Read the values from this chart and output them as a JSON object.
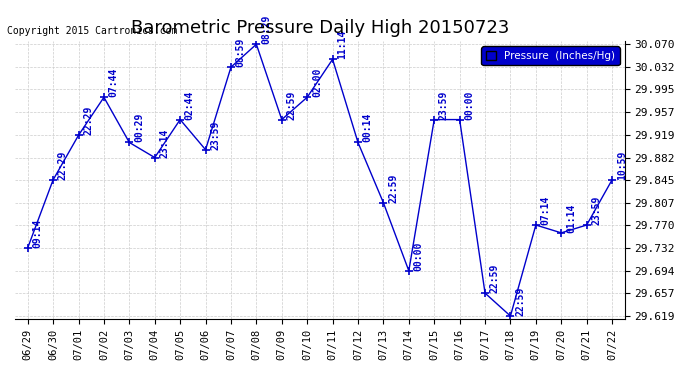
{
  "title": "Barometric Pressure Daily High 20150723",
  "copyright": "Copyright 2015 Cartronics.com",
  "legend_label": "Pressure  (Inches/Hg)",
  "line_color": "#0000cc",
  "background_color": "#ffffff",
  "grid_color": "#cccccc",
  "x_labels": [
    "06/29",
    "06/30",
    "07/01",
    "07/02",
    "07/03",
    "07/04",
    "07/05",
    "07/06",
    "07/07",
    "07/08",
    "07/09",
    "07/10",
    "07/11",
    "07/12",
    "07/13",
    "07/14",
    "07/15",
    "07/16",
    "07/17",
    "07/18",
    "07/19",
    "07/20",
    "07/21",
    "07/22"
  ],
  "y_values": [
    29.732,
    29.845,
    29.919,
    29.982,
    29.907,
    29.882,
    29.945,
    29.895,
    30.032,
    30.07,
    29.945,
    29.982,
    30.045,
    29.907,
    29.807,
    29.694,
    29.945,
    29.945,
    29.657,
    29.619,
    29.77,
    29.757,
    29.77,
    29.845
  ],
  "time_labels": [
    "09:14",
    "22:29",
    "22:29",
    "07:44",
    "00:29",
    "23:14",
    "02:44",
    "23:59",
    "08:59",
    "08:29",
    "22:59",
    "02:00",
    "11:14",
    "00:14",
    "22:59",
    "00:00",
    "23:59",
    "00:00",
    "22:59",
    "22:59",
    "07:14",
    "01:14",
    "23:59",
    "10:59"
  ],
  "ylim": [
    29.619,
    30.07
  ],
  "yticks": [
    29.619,
    29.657,
    29.694,
    29.732,
    29.77,
    29.807,
    29.845,
    29.882,
    29.919,
    29.957,
    29.995,
    30.032,
    30.07
  ],
  "annotation_fontsize": 7,
  "title_fontsize": 13
}
